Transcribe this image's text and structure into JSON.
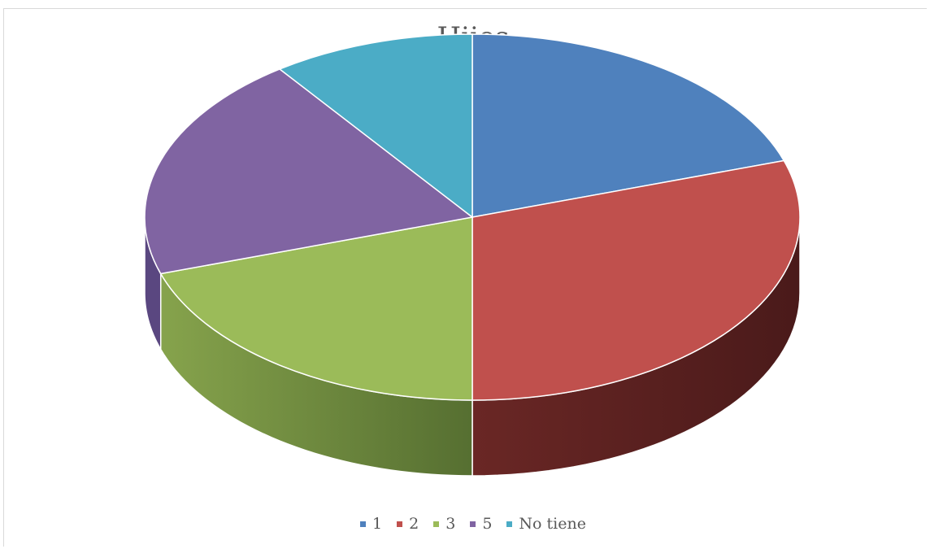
{
  "chart_data": {
    "type": "pie",
    "title": "Hijos",
    "categories": [
      "1",
      "2",
      "3",
      "5",
      "No tiene"
    ],
    "values": [
      20,
      30,
      20,
      20,
      10
    ],
    "colors": [
      "#4F81BD",
      "#C0504D",
      "#9BBB59",
      "#8064A2",
      "#4BACC6"
    ],
    "side_colors": [
      "#3b6090",
      "#4d1c1b",
      "#6a8a3a",
      "#5a4780",
      "#327a90"
    ],
    "legend_position": "bottom",
    "style": "3d"
  }
}
